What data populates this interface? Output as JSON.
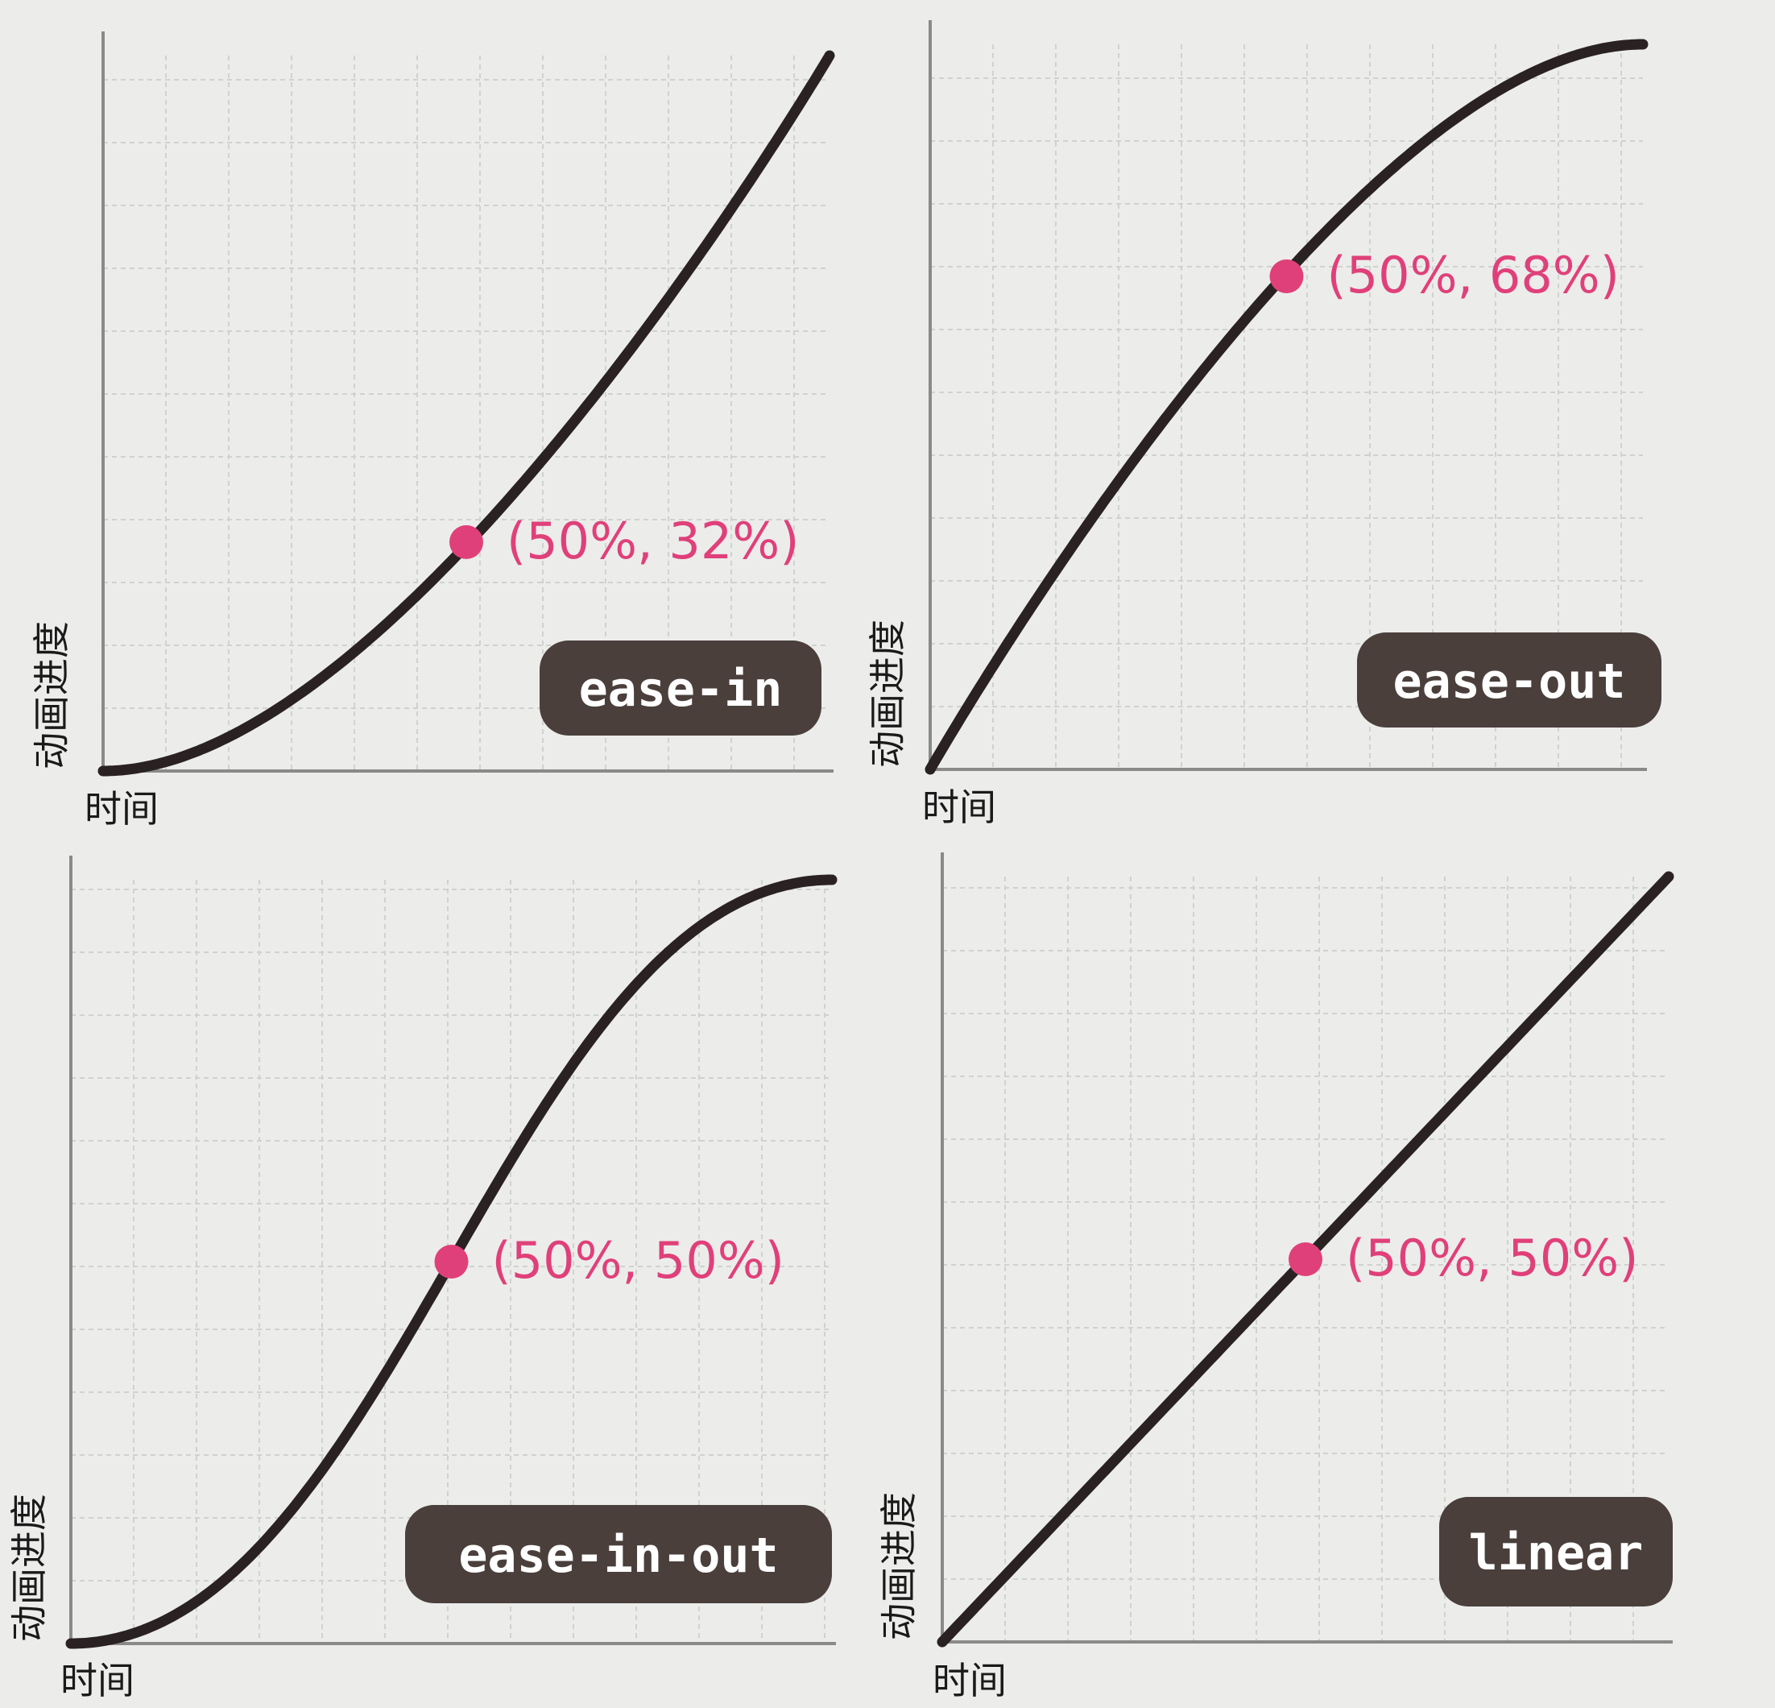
{
  "style": {
    "background": "#ecedeb",
    "grid_color": "#cfd2d0",
    "axis_color": "#8a8a8a",
    "curve_color": "#2a2222",
    "marker_color": "#e0407a",
    "badge_color": "#4a3f3b",
    "badge_text_color": "#ffffff",
    "axis_text_color": "#1a1a1a"
  },
  "chart_data": [
    {
      "type": "line",
      "timing_function": "ease-in",
      "badge": "ease-in",
      "xlabel": "时间",
      "ylabel": "动画进度",
      "xlim": [
        0,
        1
      ],
      "ylim": [
        0,
        1
      ],
      "grid": true,
      "curve": {
        "bezier": [
          0.42,
          0,
          1,
          1
        ]
      },
      "highlight": {
        "x": 0.5,
        "y": 0.32,
        "label": "(50%, 32%)"
      }
    },
    {
      "type": "line",
      "timing_function": "ease-out",
      "badge": "ease-out",
      "xlabel": "时间",
      "ylabel": "动画进度",
      "xlim": [
        0,
        1
      ],
      "ylim": [
        0,
        1
      ],
      "grid": true,
      "curve": {
        "bezier": [
          0,
          0,
          0.58,
          1
        ]
      },
      "highlight": {
        "x": 0.5,
        "y": 0.68,
        "label": "(50%, 68%)"
      }
    },
    {
      "type": "line",
      "timing_function": "ease-in-out",
      "badge": "ease-in-out",
      "xlabel": "时间",
      "ylabel": "动画进度",
      "xlim": [
        0,
        1
      ],
      "ylim": [
        0,
        1
      ],
      "grid": true,
      "curve": {
        "bezier": [
          0.42,
          0,
          0.58,
          1
        ]
      },
      "highlight": {
        "x": 0.5,
        "y": 0.5,
        "label": "(50%, 50%)"
      }
    },
    {
      "type": "line",
      "timing_function": "linear",
      "badge": "linear",
      "xlabel": "时间",
      "ylabel": "动画进度",
      "xlim": [
        0,
        1
      ],
      "ylim": [
        0,
        1
      ],
      "grid": true,
      "curve": {
        "bezier": [
          0,
          0,
          1,
          1
        ]
      },
      "highlight": {
        "x": 0.5,
        "y": 0.5,
        "label": "(50%, 50%)"
      }
    }
  ]
}
